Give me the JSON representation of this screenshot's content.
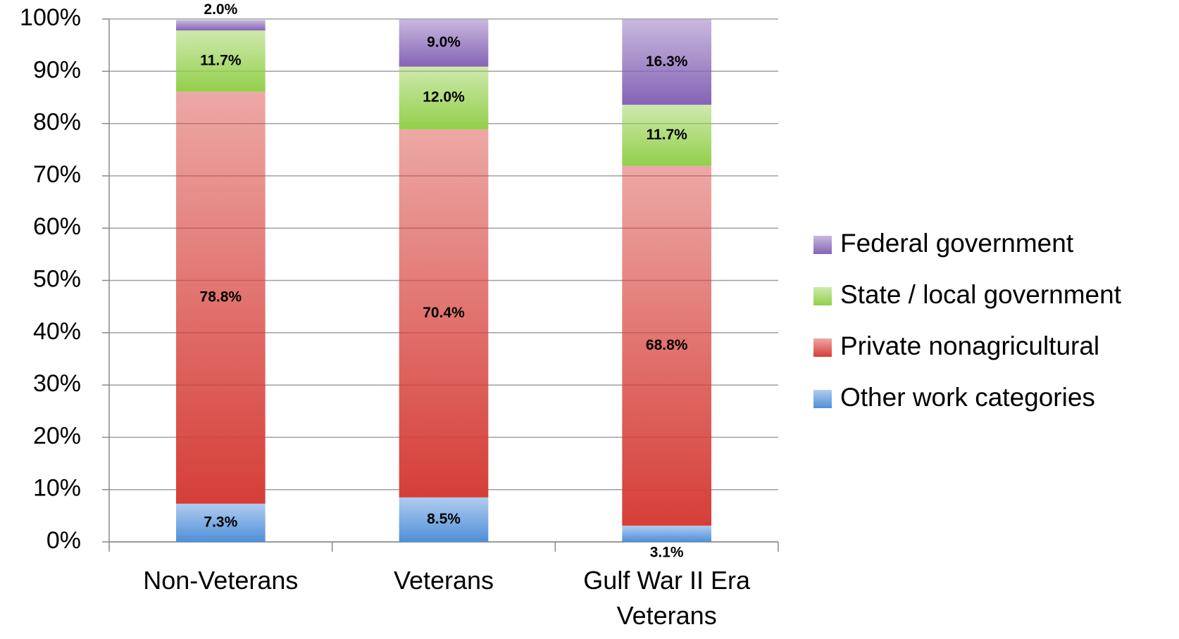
{
  "chart_data": {
    "type": "stacked-bar",
    "categories": [
      "Non-Veterans",
      "Veterans",
      "Gulf War II Era Veterans"
    ],
    "series": [
      {
        "name": "Other work categories",
        "color": "#4f8fd9",
        "values": [
          7.3,
          8.5,
          3.1
        ],
        "value_labels": [
          "7.3%",
          "8.5%",
          "3.1%"
        ]
      },
      {
        "name": "Private nonagricultural",
        "color": "#d63e38",
        "values": [
          78.8,
          70.4,
          68.8
        ],
        "value_labels": [
          "78.8%",
          "70.4%",
          "68.8%"
        ]
      },
      {
        "name": "State / local government",
        "color": "#93cf4a",
        "values": [
          11.7,
          12.0,
          11.7
        ],
        "value_labels": [
          "11.7%",
          "12.0%",
          "11.7%"
        ]
      },
      {
        "name": "Federal government",
        "color": "#8563b5",
        "values": [
          2.0,
          9.0,
          16.3
        ],
        "value_labels": [
          "2.0%",
          "9.0%",
          "16.3%"
        ]
      }
    ],
    "ylim": [
      0,
      100
    ],
    "yticks": [
      {
        "value": 0,
        "label": "0%"
      },
      {
        "value": 10,
        "label": "10%"
      },
      {
        "value": 20,
        "label": "20%"
      },
      {
        "value": 30,
        "label": "30%"
      },
      {
        "value": 40,
        "label": "40%"
      },
      {
        "value": 50,
        "label": "50%"
      },
      {
        "value": 60,
        "label": "60%"
      },
      {
        "value": 70,
        "label": "70%"
      },
      {
        "value": 80,
        "label": "80%"
      },
      {
        "value": 90,
        "label": "90%"
      },
      {
        "value": 100,
        "label": "100%"
      }
    ],
    "grid": true,
    "legend": "right"
  }
}
